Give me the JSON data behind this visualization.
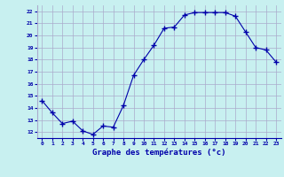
{
  "x": [
    0,
    1,
    2,
    3,
    4,
    5,
    6,
    7,
    8,
    9,
    10,
    11,
    12,
    13,
    14,
    15,
    16,
    17,
    18,
    19,
    20,
    21,
    22,
    23
  ],
  "y": [
    14.6,
    13.6,
    12.7,
    12.9,
    12.1,
    11.8,
    12.5,
    12.4,
    14.2,
    16.7,
    18.0,
    19.2,
    20.6,
    20.7,
    21.7,
    21.9,
    21.9,
    21.9,
    21.9,
    21.6,
    20.3,
    19.0,
    18.8,
    17.8
  ],
  "line_color": "#0000aa",
  "marker": "+",
  "marker_size": 4,
  "bg_color": "#c8f0f0",
  "grid_color": "#aaaacc",
  "xlabel": "Graphe des températures (°c)",
  "xlabel_color": "#0000aa",
  "tick_color": "#0000aa",
  "ylim": [
    11.5,
    22.5
  ],
  "xlim": [
    -0.5,
    23.5
  ],
  "yticks": [
    12,
    13,
    14,
    15,
    16,
    17,
    18,
    19,
    20,
    21,
    22
  ],
  "xticks": [
    0,
    1,
    2,
    3,
    4,
    5,
    6,
    7,
    8,
    9,
    10,
    11,
    12,
    13,
    14,
    15,
    16,
    17,
    18,
    19,
    20,
    21,
    22,
    23
  ],
  "xtick_labels": [
    "0",
    "1",
    "2",
    "3",
    "4",
    "5",
    "6",
    "7",
    "8",
    "9",
    "10",
    "11",
    "12",
    "13",
    "14",
    "15",
    "16",
    "17",
    "18",
    "19",
    "20",
    "21",
    "22",
    "23"
  ]
}
